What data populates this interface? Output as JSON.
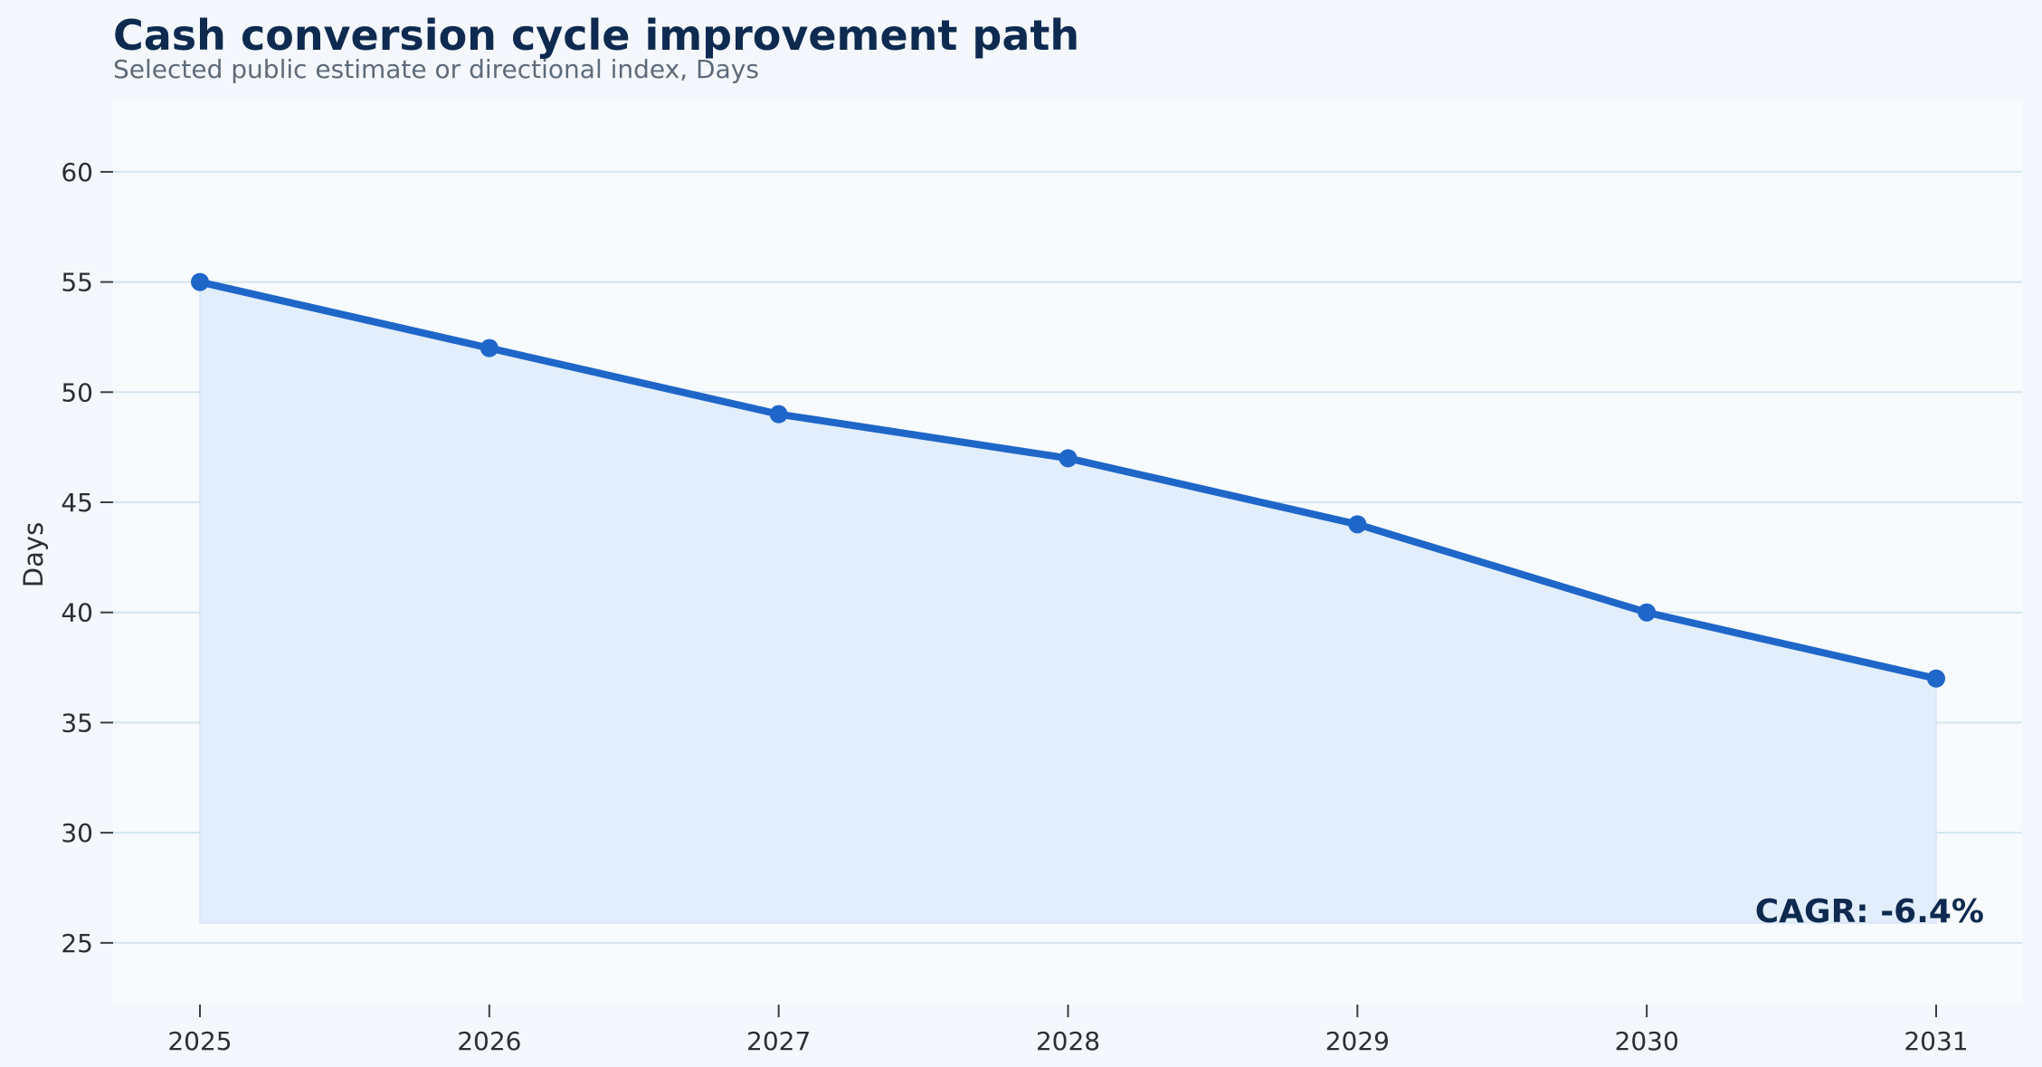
{
  "chart_data": {
    "type": "area",
    "title": "Cash conversion cycle improvement path",
    "subtitle": "Selected public estimate or directional index, Days",
    "xlabel": "",
    "ylabel": "Days",
    "x": [
      "2025",
      "2026",
      "2027",
      "2028",
      "2029",
      "2030",
      "2031"
    ],
    "series": [
      {
        "values": [
          55,
          52,
          49,
          47,
          44,
          40,
          37
        ]
      }
    ],
    "ylim": [
      22.2,
      63.2
    ],
    "yticks": [
      25,
      30,
      35,
      40,
      45,
      50,
      55,
      60
    ],
    "fill_baseline": 25.9,
    "grid": "horizontal",
    "annotation": "CAGR: -6.4%",
    "colors": {
      "line": "#1f66c9",
      "fill": "#e2eefb",
      "grid": "#d3e5f0",
      "plot_bg": "#f7fbfe",
      "page_bg": "#f4f8fc"
    }
  }
}
